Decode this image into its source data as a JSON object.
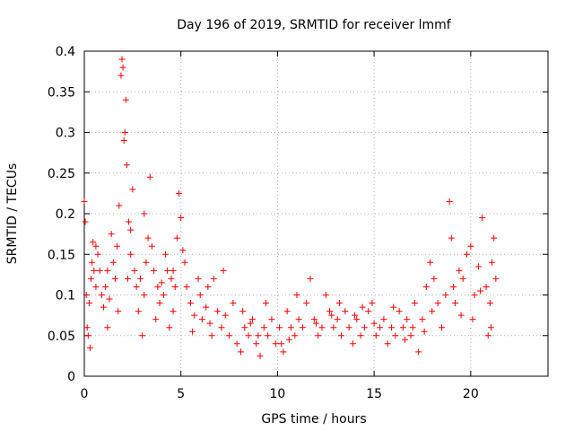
{
  "chart_data": {
    "type": "scatter",
    "title": "Day 196 of 2019, SRMTID for receiver lmmf",
    "xlabel": "GPS time / hours",
    "ylabel": "SRMTID / TECUs",
    "xlim": [
      0,
      24
    ],
    "ylim": [
      0,
      0.4
    ],
    "xticks": [
      0,
      5,
      10,
      15,
      20
    ],
    "yticks": [
      0,
      0.05,
      0.1,
      0.15,
      0.2,
      0.25,
      0.3,
      0.35,
      0.4
    ],
    "xtick_labels": [
      "0",
      "5",
      "10",
      "15",
      "20"
    ],
    "ytick_labels": [
      "0",
      "0.05",
      "0.1",
      "0.15",
      "0.2",
      "0.25",
      "0.3",
      "0.35",
      "0.4"
    ],
    "grid": true,
    "marker": "+",
    "color": "#ff0000",
    "series": [
      {
        "name": "SRMTID",
        "points": [
          [
            0.0,
            0.215
          ],
          [
            0.05,
            0.19
          ],
          [
            0.1,
            0.1
          ],
          [
            0.15,
            0.06
          ],
          [
            0.2,
            0.05
          ],
          [
            0.25,
            0.09
          ],
          [
            0.3,
            0.035
          ],
          [
            0.35,
            0.12
          ],
          [
            0.4,
            0.14
          ],
          [
            0.45,
            0.165
          ],
          [
            0.5,
            0.13
          ],
          [
            0.6,
            0.11
          ],
          [
            0.7,
            0.15
          ],
          [
            0.8,
            0.13
          ],
          [
            0.9,
            0.1
          ],
          [
            1.0,
            0.085
          ],
          [
            1.1,
            0.11
          ],
          [
            1.2,
            0.06
          ],
          [
            1.3,
            0.095
          ],
          [
            1.4,
            0.175
          ],
          [
            1.5,
            0.14
          ],
          [
            1.6,
            0.12
          ],
          [
            1.7,
            0.16
          ],
          [
            1.8,
            0.21
          ],
          [
            1.9,
            0.37
          ],
          [
            1.95,
            0.39
          ],
          [
            2.0,
            0.38
          ],
          [
            2.05,
            0.29
          ],
          [
            2.1,
            0.3
          ],
          [
            2.15,
            0.34
          ],
          [
            2.2,
            0.26
          ],
          [
            2.3,
            0.19
          ],
          [
            2.4,
            0.15
          ],
          [
            2.5,
            0.23
          ],
          [
            2.6,
            0.13
          ],
          [
            2.7,
            0.11
          ],
          [
            2.8,
            0.08
          ],
          [
            2.9,
            0.12
          ],
          [
            3.0,
            0.05
          ],
          [
            3.1,
            0.1
          ],
          [
            3.2,
            0.14
          ],
          [
            3.3,
            0.17
          ],
          [
            3.4,
            0.245
          ],
          [
            3.5,
            0.16
          ],
          [
            3.6,
            0.13
          ],
          [
            3.7,
            0.07
          ],
          [
            3.8,
            0.11
          ],
          [
            3.9,
            0.09
          ],
          [
            4.0,
            0.115
          ],
          [
            4.1,
            0.1
          ],
          [
            4.2,
            0.15
          ],
          [
            4.3,
            0.13
          ],
          [
            4.4,
            0.06
          ],
          [
            4.5,
            0.12
          ],
          [
            4.6,
            0.08
          ],
          [
            4.7,
            0.11
          ],
          [
            4.8,
            0.17
          ],
          [
            4.9,
            0.225
          ],
          [
            5.0,
            0.195
          ],
          [
            5.1,
            0.155
          ],
          [
            5.2,
            0.14
          ],
          [
            5.3,
            0.11
          ],
          [
            5.5,
            0.09
          ],
          [
            5.7,
            0.075
          ],
          [
            5.9,
            0.12
          ],
          [
            6.1,
            0.07
          ],
          [
            6.3,
            0.085
          ],
          [
            6.5,
            0.065
          ],
          [
            6.7,
            0.12
          ],
          [
            6.9,
            0.08
          ],
          [
            7.1,
            0.06
          ],
          [
            7.3,
            0.075
          ],
          [
            7.5,
            0.05
          ],
          [
            7.7,
            0.09
          ],
          [
            7.9,
            0.04
          ],
          [
            8.1,
            0.03
          ],
          [
            8.3,
            0.06
          ],
          [
            8.5,
            0.05
          ],
          [
            8.7,
            0.07
          ],
          [
            8.9,
            0.04
          ],
          [
            9.1,
            0.025
          ],
          [
            9.3,
            0.06
          ],
          [
            9.5,
            0.05
          ],
          [
            9.7,
            0.07
          ],
          [
            9.9,
            0.04
          ],
          [
            10.1,
            0.06
          ],
          [
            10.3,
            0.03
          ],
          [
            10.5,
            0.08
          ],
          [
            10.7,
            0.06
          ],
          [
            10.9,
            0.05
          ],
          [
            11.1,
            0.07
          ],
          [
            11.3,
            0.06
          ],
          [
            11.5,
            0.09
          ],
          [
            11.7,
            0.12
          ],
          [
            11.9,
            0.07
          ],
          [
            12.1,
            0.05
          ],
          [
            12.3,
            0.06
          ],
          [
            12.5,
            0.1
          ],
          [
            12.7,
            0.08
          ],
          [
            12.9,
            0.06
          ],
          [
            13.1,
            0.07
          ],
          [
            13.3,
            0.05
          ],
          [
            13.5,
            0.08
          ],
          [
            13.7,
            0.06
          ],
          [
            13.9,
            0.04
          ],
          [
            14.1,
            0.07
          ],
          [
            14.3,
            0.05
          ],
          [
            14.5,
            0.06
          ],
          [
            14.7,
            0.08
          ],
          [
            14.9,
            0.09
          ],
          [
            15.1,
            0.05
          ],
          [
            15.3,
            0.06
          ],
          [
            15.5,
            0.07
          ],
          [
            15.7,
            0.04
          ],
          [
            15.9,
            0.06
          ],
          [
            16.1,
            0.05
          ],
          [
            16.3,
            0.08
          ],
          [
            16.5,
            0.06
          ],
          [
            16.7,
            0.07
          ],
          [
            16.9,
            0.05
          ],
          [
            17.1,
            0.09
          ],
          [
            17.3,
            0.03
          ],
          [
            17.5,
            0.07
          ],
          [
            17.7,
            0.11
          ],
          [
            17.9,
            0.14
          ],
          [
            18.1,
            0.12
          ],
          [
            18.3,
            0.09
          ],
          [
            18.5,
            0.06
          ],
          [
            18.7,
            0.1
          ],
          [
            18.9,
            0.215
          ],
          [
            19.0,
            0.17
          ],
          [
            19.2,
            0.09
          ],
          [
            19.4,
            0.13
          ],
          [
            19.6,
            0.12
          ],
          [
            19.8,
            0.15
          ],
          [
            20.0,
            0.16
          ],
          [
            20.2,
            0.1
          ],
          [
            20.4,
            0.135
          ],
          [
            20.6,
            0.195
          ],
          [
            20.8,
            0.11
          ],
          [
            20.9,
            0.05
          ],
          [
            21.0,
            0.09
          ],
          [
            21.1,
            0.14
          ],
          [
            21.2,
            0.17
          ],
          [
            21.3,
            0.12
          ],
          [
            0.6,
            0.16
          ],
          [
            1.2,
            0.13
          ],
          [
            2.4,
            0.18
          ],
          [
            3.1,
            0.2
          ],
          [
            4.6,
            0.13
          ],
          [
            6.0,
            0.1
          ],
          [
            6.6,
            0.05
          ],
          [
            7.2,
            0.13
          ],
          [
            8.2,
            0.08
          ],
          [
            9.4,
            0.09
          ],
          [
            10.2,
            0.04
          ],
          [
            11.0,
            0.1
          ],
          [
            12.0,
            0.065
          ],
          [
            13.2,
            0.09
          ],
          [
            14.0,
            0.075
          ],
          [
            15.0,
            0.065
          ],
          [
            16.0,
            0.085
          ],
          [
            17.0,
            0.06
          ],
          [
            18.0,
            0.08
          ],
          [
            19.1,
            0.11
          ],
          [
            20.1,
            0.07
          ],
          [
            21.05,
            0.06
          ],
          [
            1.75,
            0.08
          ],
          [
            2.25,
            0.12
          ],
          [
            5.6,
            0.055
          ],
          [
            6.4,
            0.11
          ],
          [
            8.6,
            0.065
          ],
          [
            9.0,
            0.05
          ],
          [
            10.6,
            0.045
          ],
          [
            12.8,
            0.075
          ],
          [
            14.4,
            0.085
          ],
          [
            16.6,
            0.045
          ],
          [
            17.6,
            0.055
          ],
          [
            19.5,
            0.075
          ],
          [
            20.5,
            0.105
          ]
        ]
      }
    ]
  }
}
